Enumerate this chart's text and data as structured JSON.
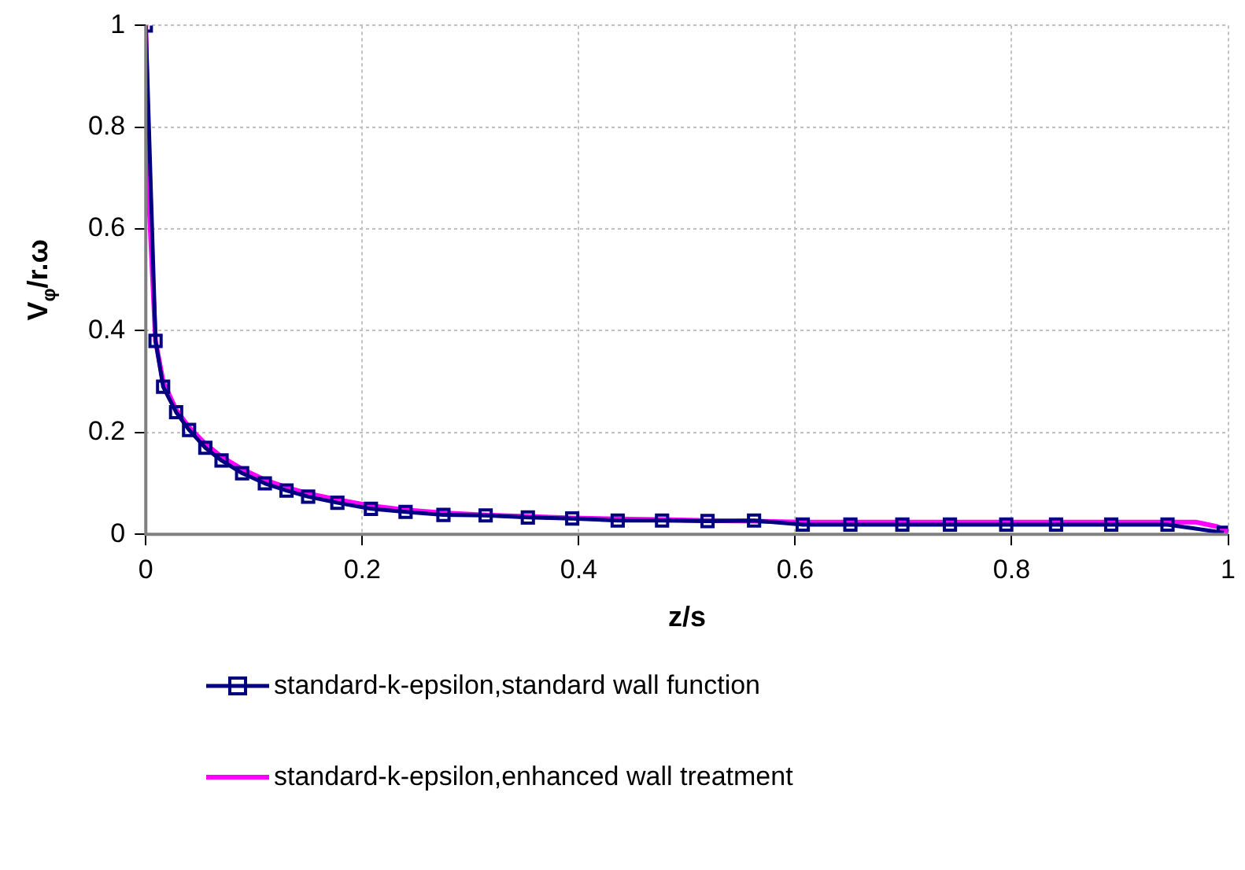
{
  "chart_data": {
    "type": "line",
    "xlabel": "z/s",
    "ylabel": "V$_{φ}$/r.ω",
    "xlim": [
      0,
      1
    ],
    "ylim": [
      0,
      1
    ],
    "xticks": [
      0,
      0.2,
      0.4,
      0.6,
      0.8,
      1
    ],
    "yticks": [
      0,
      0.2,
      0.4,
      0.6,
      0.8,
      1
    ],
    "grid": true,
    "legend": "bottom",
    "series": [
      {
        "name": "standard-k-epsilon,standard wall function",
        "color": "#000080",
        "marker": "square",
        "x": [
          0,
          0.009,
          0.016,
          0.028,
          0.04,
          0.055,
          0.07,
          0.089,
          0.11,
          0.13,
          0.15,
          0.177,
          0.208,
          0.24,
          0.275,
          0.314,
          0.353,
          0.394,
          0.436,
          0.477,
          0.519,
          0.562,
          0.607,
          0.651,
          0.699,
          0.743,
          0.795,
          0.841,
          0.892,
          0.944,
          0.996
        ],
        "values": [
          1,
          0.38,
          0.29,
          0.24,
          0.205,
          0.17,
          0.145,
          0.12,
          0.1,
          0.086,
          0.074,
          0.062,
          0.05,
          0.044,
          0.038,
          0.037,
          0.033,
          0.031,
          0.027,
          0.027,
          0.026,
          0.027,
          0.019,
          0.019,
          0.019,
          0.019,
          0.019,
          0.019,
          0.019,
          0.019,
          0.003
        ]
      },
      {
        "name": "standard-k-epsilon,enhanced wall treatment",
        "color": "#ff00ff",
        "marker": "none",
        "x": [
          0,
          0.003,
          0.009,
          0.016,
          0.028,
          0.04,
          0.055,
          0.07,
          0.089,
          0.11,
          0.13,
          0.15,
          0.177,
          0.208,
          0.24,
          0.275,
          0.314,
          0.353,
          0.394,
          0.436,
          0.477,
          0.519,
          0.562,
          0.607,
          0.7,
          0.8,
          0.9,
          0.97,
          0.99,
          1
        ],
        "values": [
          1,
          0.65,
          0.38,
          0.3,
          0.245,
          0.21,
          0.178,
          0.152,
          0.128,
          0.107,
          0.092,
          0.08,
          0.068,
          0.056,
          0.048,
          0.042,
          0.038,
          0.035,
          0.032,
          0.03,
          0.029,
          0.027,
          0.026,
          0.024,
          0.024,
          0.024,
          0.024,
          0.024,
          0.015,
          0.005
        ]
      }
    ]
  }
}
